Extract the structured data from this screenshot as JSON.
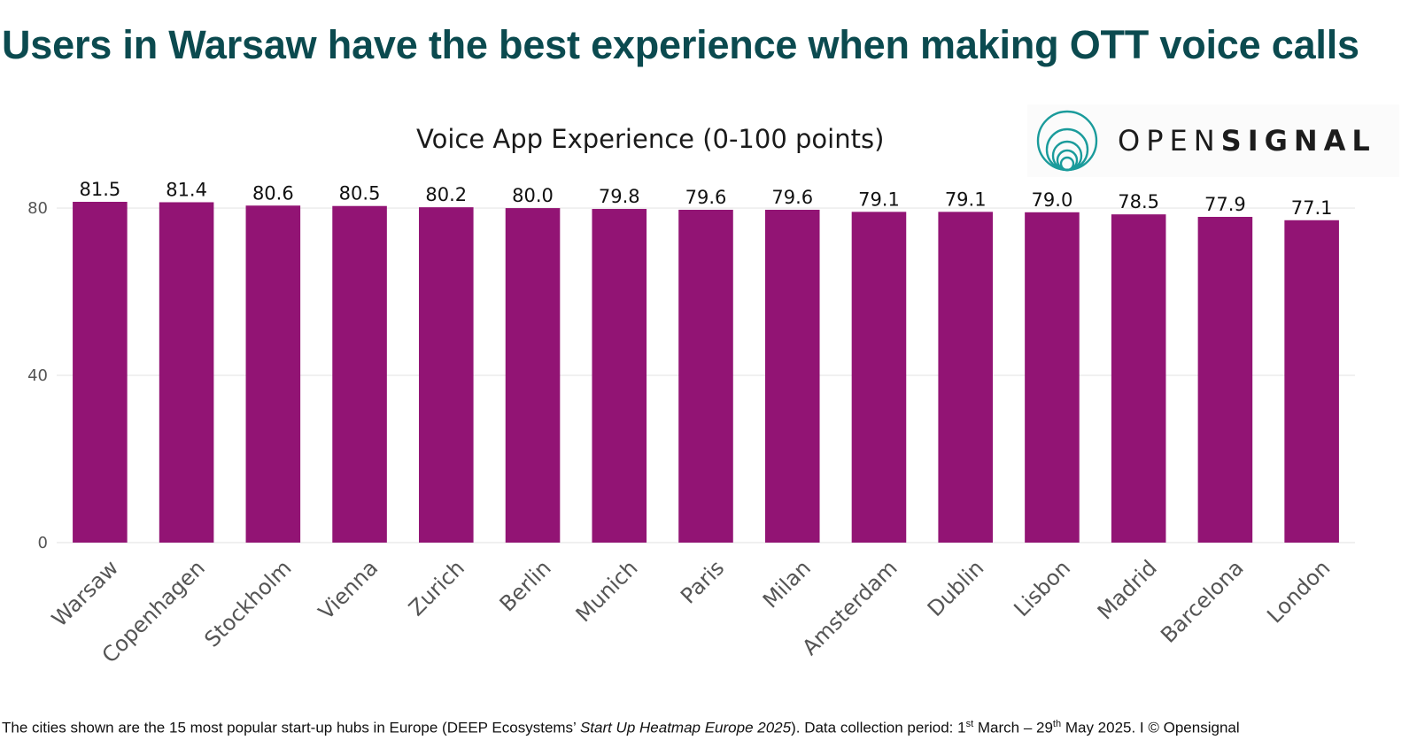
{
  "headline": "Users in Warsaw have the best experience when making OTT voice calls",
  "logo": {
    "text_light": "OPEN",
    "text_bold": "SIGNAL",
    "icon": "concentric-circles-logo-icon",
    "color": "#1a9b9b"
  },
  "footnote": {
    "part1": "The cities shown are the 15 most popular start-up hubs in Europe (DEEP Ecosystems’ ",
    "italic": "Start Up Heatmap Europe 2025",
    "part2": "). Data collection period: 1",
    "sup1": "st",
    "part3": " March – 29",
    "sup2": "th",
    "part4": " May 2025. I © Opensignal"
  },
  "colors": {
    "bar": "#921474",
    "headline": "#0b4a4f",
    "grid": "#e6e6e6"
  },
  "chart_data": {
    "type": "bar",
    "title": "Voice App Experience (0-100 points)",
    "categories": [
      "Warsaw",
      "Copenhagen",
      "Stockholm",
      "Vienna",
      "Zurich",
      "Berlin",
      "Munich",
      "Paris",
      "Milan",
      "Amsterdam",
      "Dublin",
      "Lisbon",
      "Madrid",
      "Barcelona",
      "London"
    ],
    "values": [
      81.5,
      81.4,
      80.6,
      80.5,
      80.2,
      80.0,
      79.8,
      79.6,
      79.6,
      79.1,
      79.1,
      79.0,
      78.5,
      77.9,
      77.1
    ],
    "value_labels": [
      "81.5",
      "81.4",
      "80.6",
      "80.5",
      "80.2",
      "80.0",
      "79.8",
      "79.6",
      "79.6",
      "79.1",
      "79.1",
      "79.0",
      "78.5",
      "77.9",
      "77.1"
    ],
    "y_ticks": [
      0,
      40,
      80
    ],
    "ylim": [
      0,
      81.5
    ],
    "grid": true,
    "legend": "none"
  }
}
